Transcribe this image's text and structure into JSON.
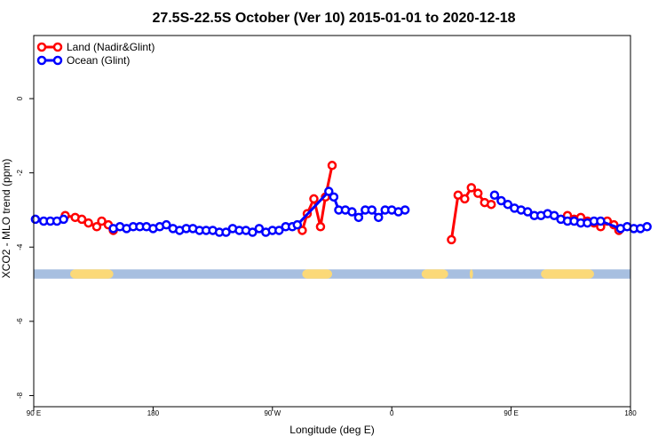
{
  "chart_data": {
    "type": "line",
    "title": "27.5S-22.5S October (Ver 10)   2015-01-01 to 2020-12-18",
    "xlabel": "Longitude (deg E)",
    "ylabel": "XCO2 - MLO trend (ppm)",
    "xlim": [
      90,
      450
    ],
    "ylim": [
      -8.3,
      1.7
    ],
    "x_ticks": [
      {
        "value": 90,
        "label": "90 E"
      },
      {
        "value": 180,
        "label": "180"
      },
      {
        "value": 270,
        "label": "90 W"
      },
      {
        "value": 360,
        "label": "0"
      },
      {
        "value": 450,
        "label": "90 E"
      },
      {
        "value": 540,
        "label": "180"
      }
    ],
    "x_tick_values": [
      90,
      162,
      234,
      306,
      378,
      450
    ],
    "y_ticks": [
      0,
      -2,
      -4,
      -6,
      -8
    ],
    "legend_position": "top-left",
    "grid": false,
    "series": [
      {
        "name": "Land (Nadir&Glint)",
        "color": "#ff0000",
        "points": [
          [
            109.0,
            -3.15
          ],
          [
            115.0,
            -3.2
          ],
          [
            119.0,
            -3.25
          ],
          [
            123.0,
            -3.35
          ],
          [
            128.0,
            -3.45
          ],
          [
            131.0,
            -3.3
          ],
          [
            135.0,
            -3.4
          ],
          [
            138.0,
            -3.55
          ],
          [
            252.0,
            -3.55
          ],
          [
            255.0,
            -3.1
          ],
          [
            259.0,
            -2.7
          ],
          [
            263.0,
            -3.45
          ],
          [
            266.0,
            -2.65
          ],
          [
            270.0,
            -1.8
          ],
          [
            342.0,
            -3.8
          ],
          [
            346.0,
            -2.6
          ],
          [
            350.0,
            -2.7
          ],
          [
            354.0,
            -2.4
          ],
          [
            358.0,
            -2.55
          ],
          [
            362.0,
            -2.8
          ],
          [
            366.0,
            -2.85
          ],
          [
            412.0,
            -3.15
          ],
          [
            416.0,
            -3.25
          ],
          [
            420.0,
            -3.2
          ],
          [
            424.0,
            -3.3
          ],
          [
            428.0,
            -3.35
          ],
          [
            432.0,
            -3.45
          ],
          [
            436.0,
            -3.3
          ],
          [
            440.0,
            -3.4
          ],
          [
            443.0,
            -3.55
          ]
        ]
      },
      {
        "name": "Ocean (Glint)",
        "color": "#0000ff",
        "points": [
          [
            91.0,
            -3.25
          ],
          [
            96.0,
            -3.3
          ],
          [
            100.0,
            -3.3
          ],
          [
            104.0,
            -3.3
          ],
          [
            108.0,
            -3.25
          ],
          [
            138.0,
            -3.5
          ],
          [
            142.0,
            -3.45
          ],
          [
            146.0,
            -3.5
          ],
          [
            150.0,
            -3.45
          ],
          [
            154.0,
            -3.45
          ],
          [
            158.0,
            -3.45
          ],
          [
            162.0,
            -3.5
          ],
          [
            166.0,
            -3.45
          ],
          [
            170.0,
            -3.4
          ],
          [
            174.0,
            -3.5
          ],
          [
            178.0,
            -3.55
          ],
          [
            182.0,
            -3.5
          ],
          [
            186.0,
            -3.5
          ],
          [
            190.0,
            -3.55
          ],
          [
            194.0,
            -3.55
          ],
          [
            198.0,
            -3.55
          ],
          [
            202.0,
            -3.6
          ],
          [
            206.0,
            -3.6
          ],
          [
            210.0,
            -3.5
          ],
          [
            214.0,
            -3.55
          ],
          [
            218.0,
            -3.55
          ],
          [
            222.0,
            -3.6
          ],
          [
            226.0,
            -3.5
          ],
          [
            230.0,
            -3.6
          ],
          [
            234.0,
            -3.55
          ],
          [
            238.0,
            -3.55
          ],
          [
            242.0,
            -3.45
          ],
          [
            246.0,
            -3.45
          ],
          [
            249.0,
            -3.4
          ],
          [
            268.0,
            -2.5
          ],
          [
            271.0,
            -2.65
          ],
          [
            274.0,
            -3.0
          ],
          [
            278.0,
            -3.0
          ],
          [
            282.0,
            -3.05
          ],
          [
            286.0,
            -3.2
          ],
          [
            290.0,
            -3.0
          ],
          [
            294.0,
            -3.0
          ],
          [
            298.0,
            -3.2
          ],
          [
            302.0,
            -3.0
          ],
          [
            306.0,
            -3.0
          ],
          [
            310.0,
            -3.05
          ],
          [
            314.0,
            -3.0
          ],
          [
            368.0,
            -2.6
          ],
          [
            372.0,
            -2.75
          ],
          [
            376.0,
            -2.85
          ],
          [
            380.0,
            -2.95
          ],
          [
            384.0,
            -3.0
          ],
          [
            388.0,
            -3.05
          ],
          [
            392.0,
            -3.15
          ],
          [
            396.0,
            -3.15
          ],
          [
            400.0,
            -3.1
          ],
          [
            404.0,
            -3.15
          ],
          [
            408.0,
            -3.25
          ],
          [
            412.0,
            -3.3
          ],
          [
            416.0,
            -3.3
          ],
          [
            420.0,
            -3.35
          ],
          [
            424.0,
            -3.35
          ],
          [
            428.0,
            -3.3
          ],
          [
            432.0,
            -3.3
          ],
          [
            444.0,
            -3.5
          ],
          [
            448.0,
            -3.45
          ],
          [
            452.0,
            -3.5
          ],
          [
            456.0,
            -3.5
          ],
          [
            460.0,
            -3.45
          ]
        ]
      }
    ],
    "landmask_segments": [
      {
        "type": "ocean",
        "from": 90,
        "to": 450
      },
      {
        "type": "land",
        "from": 112,
        "to": 138
      },
      {
        "type": "land",
        "from": 252,
        "to": 270
      },
      {
        "type": "land",
        "from": 324,
        "to": 340
      },
      {
        "type": "land",
        "from": 353,
        "to": 355
      },
      {
        "type": "land",
        "from": 396,
        "to": 428
      }
    ],
    "landmask_colors": {
      "ocean": "#a7bfe0",
      "land": "#fbd978"
    }
  }
}
